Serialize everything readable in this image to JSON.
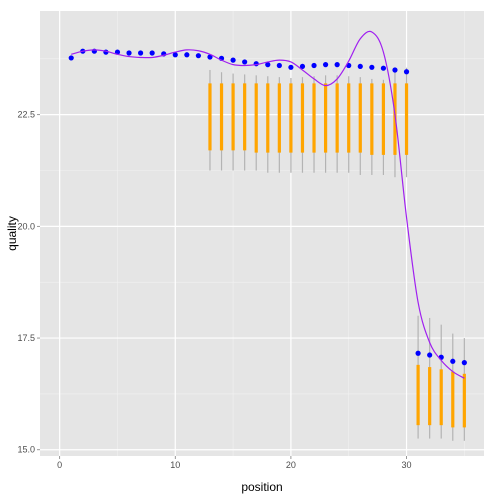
{
  "chart_data": {
    "type": "scatter",
    "xlabel": "position",
    "ylabel": "quality",
    "xlim": [
      -1.7,
      36.7
    ],
    "ylim": [
      14.86,
      24.82
    ],
    "x_ticks": [
      0,
      10,
      20,
      30
    ],
    "y_ticks": [
      15.0,
      17.5,
      20.0,
      22.5
    ],
    "grid": true,
    "background": "#e5e5e5",
    "colors": {
      "points": "#0000ff",
      "boxes": "#ffa500",
      "whiskers": "#b3b3b3",
      "smooth": "#a020f0"
    },
    "points": {
      "x": [
        1,
        2,
        3,
        4,
        5,
        6,
        7,
        8,
        9,
        10,
        11,
        12,
        13,
        14,
        15,
        16,
        17,
        18,
        19,
        20,
        21,
        22,
        23,
        24,
        25,
        26,
        27,
        28,
        29,
        30,
        31,
        32,
        33,
        34,
        35
      ],
      "y": [
        23.77,
        23.92,
        23.92,
        23.9,
        23.9,
        23.88,
        23.88,
        23.88,
        23.86,
        23.84,
        23.84,
        23.82,
        23.79,
        23.76,
        23.72,
        23.68,
        23.64,
        23.62,
        23.6,
        23.56,
        23.58,
        23.6,
        23.62,
        23.62,
        23.6,
        23.58,
        23.56,
        23.54,
        23.5,
        23.46,
        17.16,
        17.12,
        17.07,
        16.98,
        16.95
      ]
    },
    "boxplots": [
      {
        "x": 13,
        "low": 21.25,
        "q1": 21.7,
        "q3": 23.2,
        "high": 23.5
      },
      {
        "x": 14,
        "low": 21.25,
        "q1": 21.7,
        "q3": 23.2,
        "high": 23.45
      },
      {
        "x": 15,
        "low": 21.25,
        "q1": 21.7,
        "q3": 23.2,
        "high": 23.42
      },
      {
        "x": 16,
        "low": 21.25,
        "q1": 21.7,
        "q3": 23.2,
        "high": 23.4
      },
      {
        "x": 17,
        "low": 21.25,
        "q1": 21.65,
        "q3": 23.2,
        "high": 23.38
      },
      {
        "x": 18,
        "low": 21.2,
        "q1": 21.65,
        "q3": 23.2,
        "high": 23.36
      },
      {
        "x": 19,
        "low": 21.2,
        "q1": 21.65,
        "q3": 23.2,
        "high": 23.34
      },
      {
        "x": 20,
        "low": 21.2,
        "q1": 21.65,
        "q3": 23.2,
        "high": 23.32
      },
      {
        "x": 21,
        "low": 21.2,
        "q1": 21.65,
        "q3": 23.2,
        "high": 23.34
      },
      {
        "x": 22,
        "low": 21.2,
        "q1": 21.65,
        "q3": 23.2,
        "high": 23.36
      },
      {
        "x": 23,
        "low": 21.2,
        "q1": 21.65,
        "q3": 23.2,
        "high": 23.38
      },
      {
        "x": 24,
        "low": 21.2,
        "q1": 21.65,
        "q3": 23.2,
        "high": 23.38
      },
      {
        "x": 25,
        "low": 21.2,
        "q1": 21.65,
        "q3": 23.2,
        "high": 23.36
      },
      {
        "x": 26,
        "low": 21.15,
        "q1": 21.65,
        "q3": 23.2,
        "high": 23.34
      },
      {
        "x": 27,
        "low": 21.15,
        "q1": 21.6,
        "q3": 23.2,
        "high": 23.3
      },
      {
        "x": 28,
        "low": 21.15,
        "q1": 21.6,
        "q3": 23.2,
        "high": 23.28
      },
      {
        "x": 29,
        "low": 21.1,
        "q1": 21.6,
        "q3": 23.2,
        "high": 23.55
      },
      {
        "x": 30,
        "low": 21.1,
        "q1": 21.6,
        "q3": 23.2,
        "high": 23.55
      },
      {
        "x": 31,
        "low": 15.25,
        "q1": 15.55,
        "q3": 16.9,
        "high": 18.0
      },
      {
        "x": 32,
        "low": 15.25,
        "q1": 15.55,
        "q3": 16.85,
        "high": 17.95
      },
      {
        "x": 33,
        "low": 15.25,
        "q1": 15.55,
        "q3": 16.8,
        "high": 17.8
      },
      {
        "x": 34,
        "low": 15.2,
        "q1": 15.5,
        "q3": 16.75,
        "high": 17.6
      },
      {
        "x": 35,
        "low": 15.2,
        "q1": 15.5,
        "q3": 16.7,
        "high": 17.5
      }
    ],
    "smooth": {
      "x": [
        1,
        2,
        3,
        4,
        5,
        6,
        7,
        8,
        9,
        10,
        11,
        12,
        13,
        14,
        15,
        16,
        17,
        18,
        19,
        20,
        21,
        22,
        23,
        24,
        25,
        26,
        27,
        28,
        29,
        30,
        31,
        32,
        33,
        34,
        35
      ],
      "y": [
        23.85,
        23.92,
        23.95,
        23.92,
        23.85,
        23.8,
        23.78,
        23.78,
        23.83,
        23.9,
        23.95,
        23.93,
        23.85,
        23.72,
        23.62,
        23.6,
        23.62,
        23.68,
        23.72,
        23.68,
        23.5,
        23.3,
        23.15,
        23.3,
        23.7,
        24.2,
        24.35,
        23.9,
        22.5,
        20.2,
        18.3,
        17.4,
        17.0,
        16.75,
        16.6
      ]
    }
  }
}
